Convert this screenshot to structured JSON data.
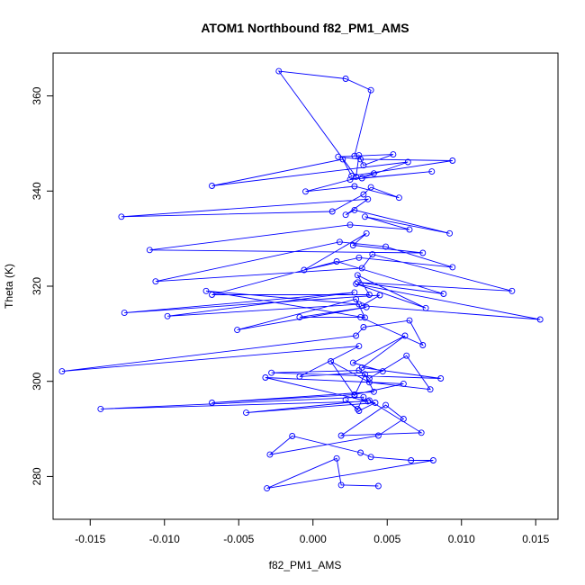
{
  "chart_data": {
    "type": "scatter",
    "title": "ATOM1 Northbound f82_PM1_AMS",
    "xlabel": "f82_PM1_AMS",
    "ylabel": "Theta (K)",
    "xlim": [
      -0.0175,
      0.0165
    ],
    "ylim": [
      271,
      369
    ],
    "x_ticks": [
      -0.015,
      -0.01,
      -0.005,
      0.0,
      0.005,
      0.01,
      0.015
    ],
    "x_tick_labels": [
      "-0.015",
      "-0.010",
      "-0.005",
      "0.000",
      "0.005",
      "0.010",
      "0.015"
    ],
    "y_ticks": [
      280,
      300,
      320,
      340,
      360
    ],
    "y_tick_labels": [
      "280",
      "300",
      "320",
      "340",
      "360"
    ],
    "grid": false,
    "connect_points": true,
    "marker": "open-circle",
    "color": "#0000ff",
    "series": [
      {
        "x": [
          0.0044,
          0.0019,
          0.0016,
          -0.0031,
          0.0081,
          0.0066,
          0.0039,
          0.0032,
          -0.0014,
          -0.0029,
          0.0044,
          0.0061,
          0.0049,
          0.0019,
          0.0073,
          0.0038,
          -0.0045,
          0.0042,
          0.0031,
          0.0022,
          0.003,
          0.0034,
          -0.0143,
          0.0037,
          -0.0032,
          0.0061,
          0.0028,
          -0.0068,
          0.0041,
          0.0035,
          0.0028,
          0.0012,
          0.0038,
          0.0079,
          0.0063,
          0.0038,
          0.0031,
          -0.0028,
          0.0086,
          0.0033,
          0.0062,
          0.0027,
          0.0047,
          -0.0009,
          0.0031,
          -0.0169,
          0.0029,
          0.0034,
          0.0065,
          0.0074,
          0.0032,
          -0.0009,
          0.0036,
          -0.0051,
          0.0029,
          0.0035,
          -0.0072,
          0.0031,
          -0.0098,
          0.0028,
          -0.0127,
          0.0045,
          0.0033,
          0.0153,
          0.0029,
          0.0076,
          0.003,
          0.0038,
          -0.0068,
          0.0016,
          0.0088,
          0.003,
          0.0134,
          0.004,
          0.0033,
          -0.0106,
          0.0018,
          0.0049,
          0.0094,
          0.0031,
          -0.0006,
          0.0036,
          0.0027,
          0.0074,
          -0.011,
          0.0025,
          0.0065,
          0.0035,
          0.0092,
          0.0028,
          0.0022,
          0.0037,
          -0.0129,
          0.0013,
          0.0034,
          0.0039,
          0.0058,
          0.0028,
          -0.0005,
          0.0041,
          0.0025,
          0.008,
          0.0033,
          0.0064,
          -0.0068,
          0.002,
          0.0026,
          0.0094,
          0.0032,
          0.0017,
          0.0054,
          0.0034,
          0.0031,
          0.0029,
          -0.0023,
          0.0022,
          0.0039,
          0.0028
        ],
        "y": [
          278.0,
          278.2,
          283.8,
          277.5,
          283.4,
          283.4,
          284.1,
          285.0,
          288.5,
          284.6,
          288.6,
          292.1,
          295.0,
          288.6,
          289.2,
          296.0,
          293.4,
          295.5,
          293.8,
          296.1,
          294.2,
          296.7,
          294.2,
          295.8,
          300.8,
          299.5,
          297.2,
          295.5,
          297.8,
          301.5,
          297.0,
          304.2,
          299.8,
          298.3,
          305.4,
          300.6,
          302.3,
          301.8,
          300.6,
          302.9,
          309.6,
          303.9,
          302.1,
          301.0,
          307.4,
          302.1,
          309.6,
          311.4,
          312.8,
          307.6,
          313.5,
          313.5,
          315.6,
          310.8,
          317.3,
          313.4,
          319.0,
          316.2,
          313.7,
          318.7,
          314.4,
          318.1,
          315.9,
          313.0,
          320.5,
          315.4,
          322.3,
          318.2,
          318.2,
          325.2,
          318.4,
          320.8,
          319.0,
          326.7,
          323.8,
          321.0,
          329.3,
          328.3,
          324.0,
          326.0,
          323.4,
          331.1,
          328.6,
          327.0,
          327.6,
          332.9,
          331.9,
          334.6,
          331.1,
          336.0,
          335.0,
          338.3,
          334.6,
          335.7,
          339.3,
          340.8,
          338.6,
          341.0,
          339.9,
          343.7,
          342.4,
          344.1,
          342.7,
          346.1,
          341.1,
          346.7,
          343.2,
          346.4,
          346.7,
          347.2,
          347.7,
          345.4,
          347.5,
          343.0,
          365.2,
          363.6,
          361.2,
          347.4
        ]
      }
    ]
  }
}
